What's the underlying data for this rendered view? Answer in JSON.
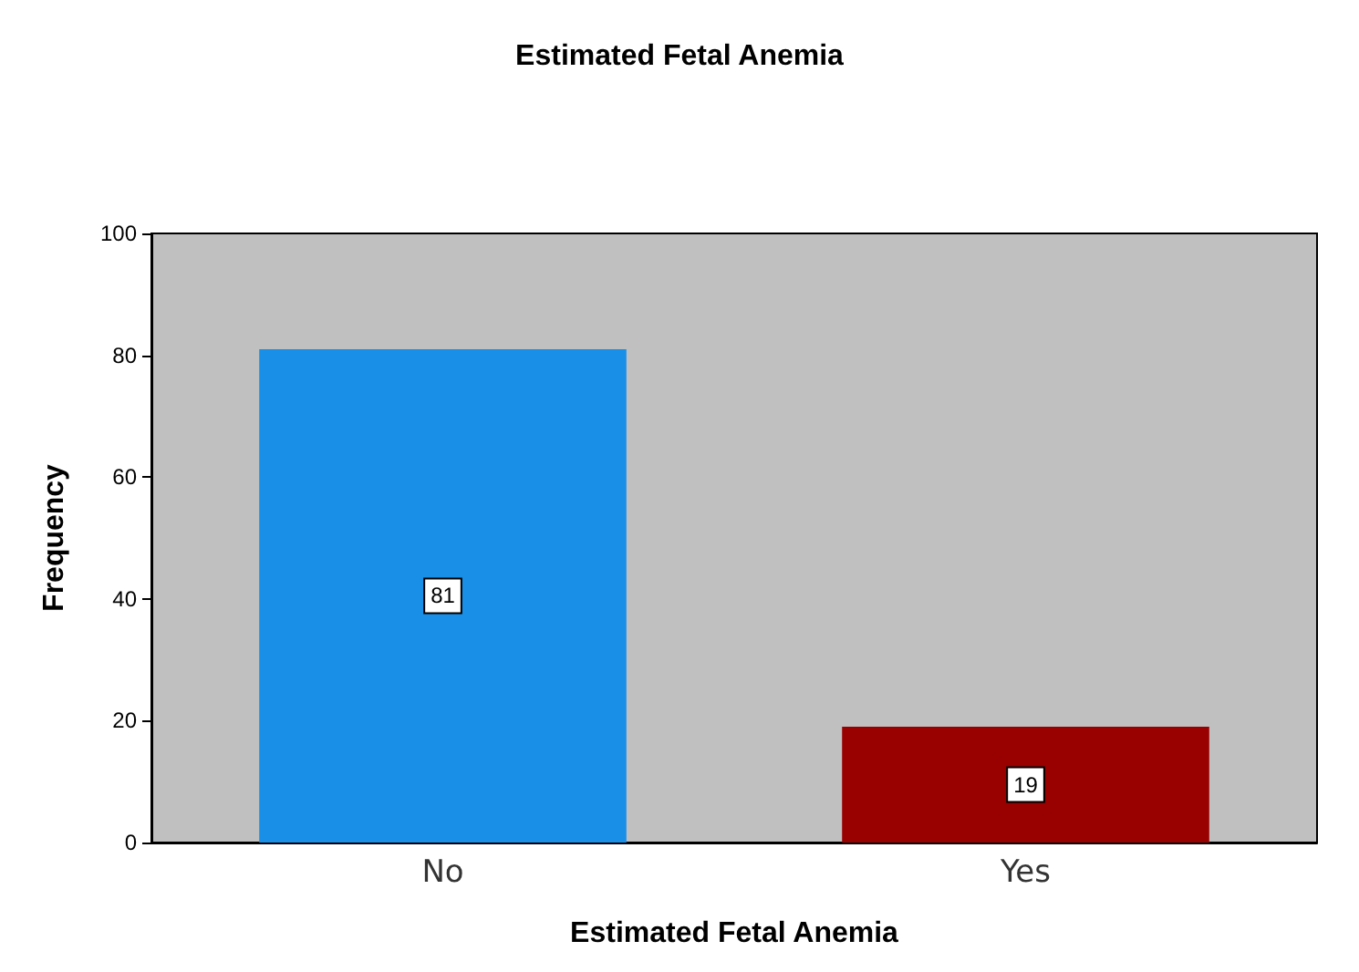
{
  "chart_data": {
    "type": "bar",
    "title": "Estimated Fetal Anemia",
    "xlabel": "Estimated Fetal Anemia",
    "ylabel": "Frequency",
    "categories": [
      "No",
      "Yes"
    ],
    "values": [
      81,
      19
    ],
    "colors": [
      "#1a8fe8",
      "#990000"
    ],
    "ylim": [
      0,
      100
    ],
    "yticks": [
      0,
      20,
      40,
      60,
      80,
      100
    ],
    "data_labels": true
  }
}
